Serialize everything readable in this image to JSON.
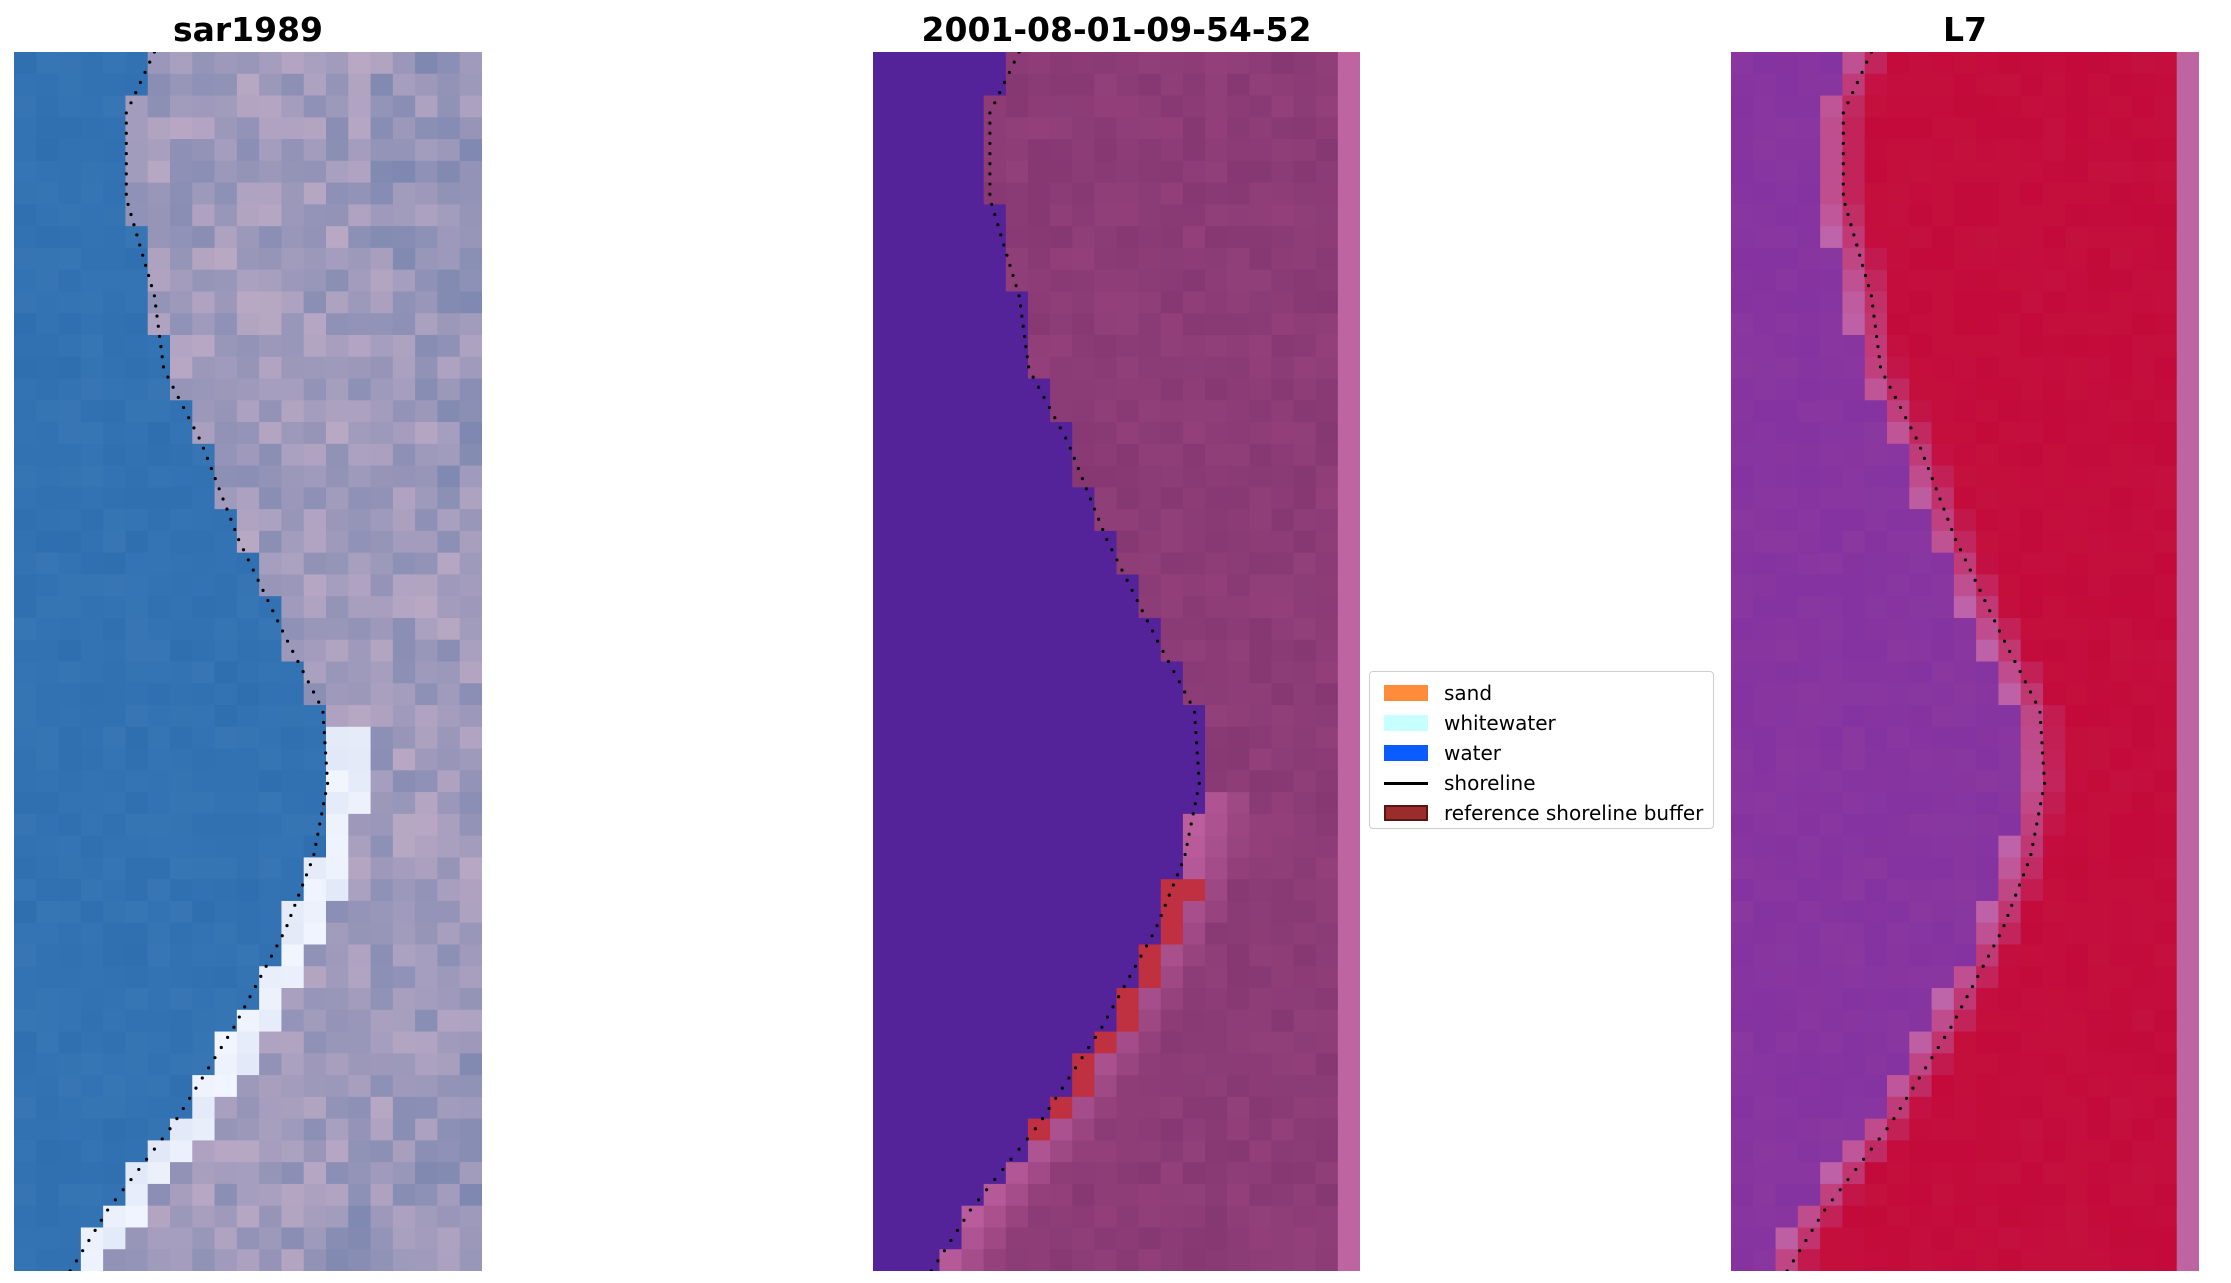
{
  "panels": [
    {
      "id": "p1",
      "title": "sar1989",
      "style": "rgb"
    },
    {
      "id": "p2",
      "title": "2001-08-01-09-54-52",
      "style": "classified"
    },
    {
      "id": "p3",
      "title": "L7",
      "style": "index"
    }
  ],
  "legend": {
    "items": [
      {
        "label": "sand",
        "type": "patch",
        "color": "#ff8c3a"
      },
      {
        "label": "whitewater",
        "type": "patch",
        "color": "#c8ffff"
      },
      {
        "label": "water",
        "type": "patch",
        "color": "#0a5cff"
      },
      {
        "label": "shoreline",
        "type": "line",
        "color": "#000000"
      },
      {
        "label": "reference shoreline buffer",
        "type": "patch",
        "color": "#9b2c2c",
        "edge": "#5a1414"
      }
    ]
  },
  "colors": {
    "water_true": "#2f6fb0",
    "sand_true": "#b8a8c4",
    "whitewater_true": "#f2f6ff",
    "water_class": "#54239a",
    "land_class": "#93407a",
    "buffer_class": "#bf3040",
    "water_index": "#8a37a0",
    "land_index": "#c30a3a"
  }
}
